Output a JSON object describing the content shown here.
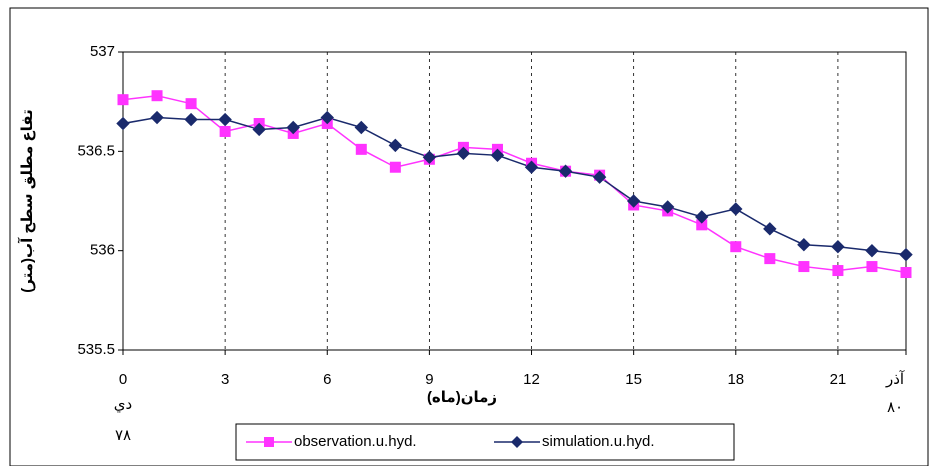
{
  "chart_data": {
    "type": "line",
    "ylabel": "تفاع مطلق سطح آب(متر)",
    "xlabel": "زمان(ماه)",
    "annotations": [
      "دي",
      "۷۸",
      "۸۰"
    ],
    "x": [
      0,
      1,
      2,
      3,
      4,
      5,
      6,
      7,
      8,
      9,
      10,
      11,
      12,
      13,
      14,
      15,
      16,
      17,
      18,
      19,
      20,
      21,
      22,
      23
    ],
    "series": [
      {
        "name": "observation.u.hyd.",
        "color": "#ff33ff",
        "marker": "square",
        "values": [
          536.76,
          536.78,
          536.74,
          536.6,
          536.64,
          536.59,
          536.64,
          536.51,
          536.42,
          536.46,
          536.52,
          536.51,
          536.44,
          536.4,
          536.38,
          536.23,
          536.2,
          536.13,
          536.02,
          535.96,
          535.92,
          535.9,
          535.92,
          535.89
        ]
      },
      {
        "name": "simulation.u.hyd.",
        "color": "#1a2a6c",
        "marker": "diamond",
        "values": [
          536.64,
          536.67,
          536.66,
          536.66,
          536.61,
          536.62,
          536.67,
          536.62,
          536.53,
          536.47,
          536.49,
          536.48,
          536.42,
          536.4,
          536.37,
          536.25,
          536.22,
          536.17,
          536.21,
          536.11,
          536.03,
          536.02,
          536.0,
          535.98
        ]
      }
    ],
    "xlim": [
      0,
      23
    ],
    "xticks": [
      0,
      3,
      6,
      9,
      12,
      15,
      18,
      21,
      {
        "value": 23,
        "label": "آذر"
      }
    ],
    "ylim": [
      535.5,
      537
    ],
    "yticks": [
      535.5,
      536,
      536.5,
      537
    ],
    "grid": "x-dashed",
    "legend": "bottom"
  }
}
